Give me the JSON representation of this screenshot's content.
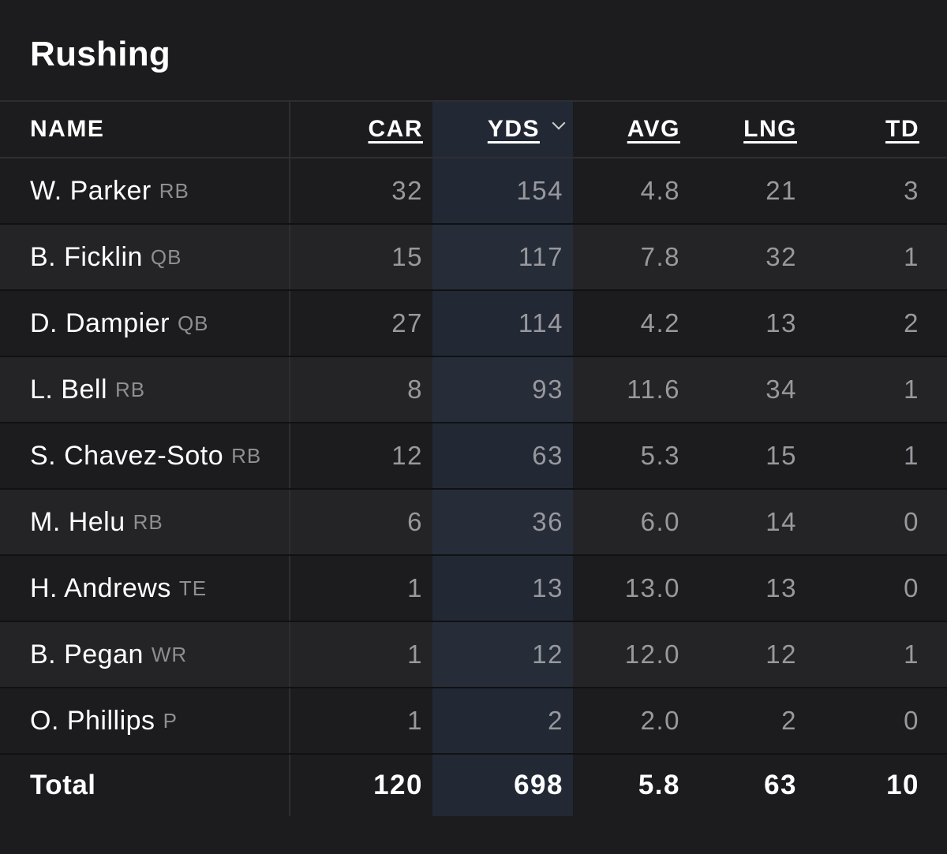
{
  "title": "Rushing",
  "columns": {
    "name": "NAME",
    "car": "CAR",
    "yds": "YDS",
    "avg": "AVG",
    "lng": "LNG",
    "td": "TD"
  },
  "sort": {
    "column": "YDS",
    "direction": "descending",
    "icon": "chevron-down-icon"
  },
  "rows": [
    {
      "name": "W. Parker",
      "pos": "RB",
      "car": "32",
      "yds": "154",
      "avg": "4.8",
      "lng": "21",
      "td": "3"
    },
    {
      "name": "B. Ficklin",
      "pos": "QB",
      "car": "15",
      "yds": "117",
      "avg": "7.8",
      "lng": "32",
      "td": "1"
    },
    {
      "name": "D. Dampier",
      "pos": "QB",
      "car": "27",
      "yds": "114",
      "avg": "4.2",
      "lng": "13",
      "td": "2"
    },
    {
      "name": "L. Bell",
      "pos": "RB",
      "car": "8",
      "yds": "93",
      "avg": "11.6",
      "lng": "34",
      "td": "1"
    },
    {
      "name": "S. Chavez-Soto",
      "pos": "RB",
      "car": "12",
      "yds": "63",
      "avg": "5.3",
      "lng": "15",
      "td": "1"
    },
    {
      "name": "M. Helu",
      "pos": "RB",
      "car": "6",
      "yds": "36",
      "avg": "6.0",
      "lng": "14",
      "td": "0"
    },
    {
      "name": "H. Andrews",
      "pos": "TE",
      "car": "1",
      "yds": "13",
      "avg": "13.0",
      "lng": "13",
      "td": "0"
    },
    {
      "name": "B. Pegan",
      "pos": "WR",
      "car": "1",
      "yds": "12",
      "avg": "12.0",
      "lng": "12",
      "td": "1"
    },
    {
      "name": "O. Phillips",
      "pos": "P",
      "car": "1",
      "yds": "2",
      "avg": "2.0",
      "lng": "2",
      "td": "0"
    }
  ],
  "total": {
    "label": "Total",
    "car": "120",
    "yds": "698",
    "avg": "5.8",
    "lng": "63",
    "td": "10"
  },
  "colors": {
    "background": "#1c1c1e",
    "row_alt": "#242426",
    "sorted_column": "#232a38",
    "text_primary": "#ffffff",
    "text_secondary": "#98989d"
  }
}
